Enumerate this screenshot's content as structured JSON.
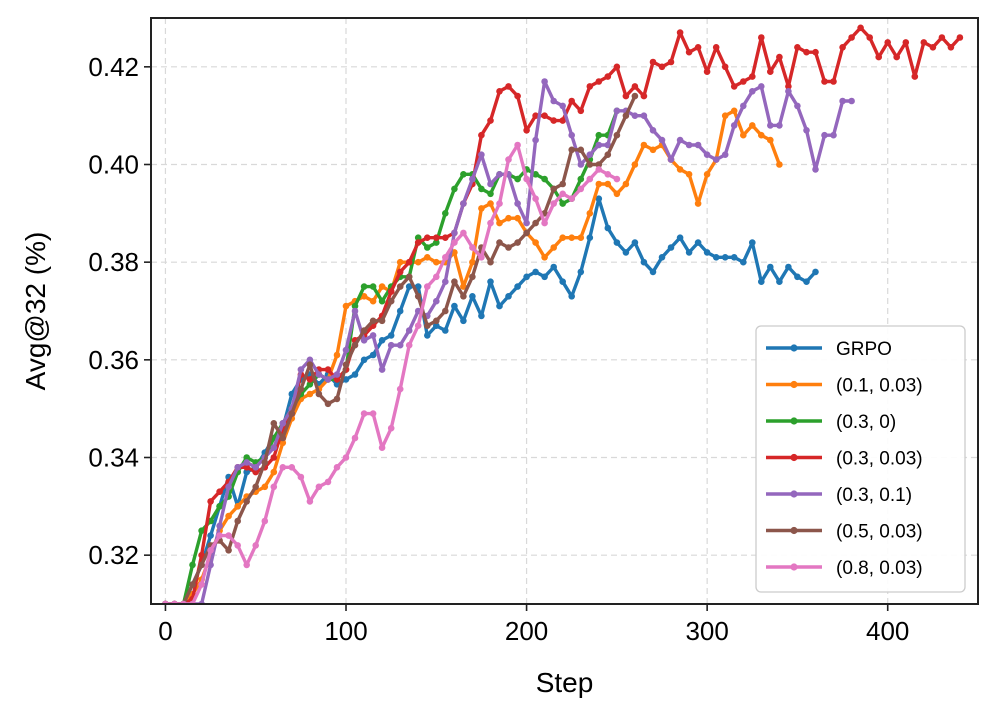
{
  "chart_data": {
    "type": "line",
    "xlabel": "Step",
    "ylabel": "Avg@32 (%)",
    "xlim": [
      -8,
      450
    ],
    "ylim": [
      0.31,
      0.43
    ],
    "xticks": [
      0,
      100,
      200,
      300,
      400
    ],
    "yticks": [
      0.32,
      0.34,
      0.36,
      0.38,
      0.4,
      0.42
    ],
    "grid": true,
    "legend_position": "lower-right",
    "series": [
      {
        "name": "GRPO",
        "color": "#1f77b4",
        "x": [
          0,
          5,
          10,
          15,
          20,
          25,
          30,
          35,
          40,
          45,
          50,
          55,
          60,
          65,
          70,
          75,
          80,
          85,
          90,
          95,
          100,
          105,
          110,
          115,
          120,
          125,
          130,
          135,
          140,
          145,
          150,
          155,
          160,
          165,
          170,
          175,
          180,
          185,
          190,
          195,
          200,
          205,
          210,
          215,
          220,
          225,
          230,
          235,
          240,
          245,
          250,
          255,
          260,
          265,
          270,
          275,
          280,
          285,
          290,
          295,
          300,
          305,
          310,
          315,
          320,
          325,
          330,
          335,
          340,
          345,
          350,
          355,
          360
        ],
        "values": [
          0.31,
          0.31,
          0.31,
          0.314,
          0.318,
          0.324,
          0.33,
          0.336,
          0.33,
          0.337,
          0.338,
          0.341,
          0.344,
          0.346,
          0.353,
          0.356,
          0.357,
          0.355,
          0.357,
          0.355,
          0.356,
          0.357,
          0.36,
          0.361,
          0.364,
          0.365,
          0.37,
          0.375,
          0.375,
          0.365,
          0.367,
          0.366,
          0.371,
          0.368,
          0.373,
          0.369,
          0.376,
          0.371,
          0.373,
          0.375,
          0.377,
          0.378,
          0.377,
          0.379,
          0.376,
          0.373,
          0.378,
          0.385,
          0.393,
          0.387,
          0.384,
          0.382,
          0.384,
          0.38,
          0.378,
          0.381,
          0.383,
          0.385,
          0.382,
          0.384,
          0.382,
          0.381,
          0.381,
          0.381,
          0.38,
          0.384,
          0.376,
          0.379,
          0.376,
          0.379,
          0.377,
          0.376,
          0.378
        ]
      },
      {
        "name": "(0.1, 0.03)",
        "color": "#ff7f0e",
        "x": [
          0,
          5,
          10,
          15,
          20,
          25,
          30,
          35,
          40,
          45,
          50,
          55,
          60,
          65,
          70,
          75,
          80,
          85,
          90,
          95,
          100,
          105,
          110,
          115,
          120,
          125,
          130,
          135,
          140,
          145,
          150,
          155,
          160,
          165,
          170,
          175,
          180,
          185,
          190,
          195,
          200,
          205,
          210,
          215,
          220,
          225,
          230,
          235,
          240,
          245,
          250,
          255,
          260,
          265,
          270,
          275,
          280,
          285,
          290,
          295,
          300,
          305,
          310,
          315,
          320,
          325,
          330,
          335,
          340
        ],
        "values": [
          0.31,
          0.31,
          0.31,
          0.312,
          0.315,
          0.32,
          0.325,
          0.328,
          0.33,
          0.332,
          0.333,
          0.334,
          0.337,
          0.343,
          0.348,
          0.352,
          0.353,
          0.354,
          0.356,
          0.361,
          0.371,
          0.372,
          0.373,
          0.372,
          0.375,
          0.374,
          0.38,
          0.38,
          0.38,
          0.381,
          0.38,
          0.38,
          0.382,
          0.375,
          0.38,
          0.391,
          0.392,
          0.388,
          0.389,
          0.389,
          0.386,
          0.384,
          0.381,
          0.383,
          0.385,
          0.385,
          0.385,
          0.39,
          0.396,
          0.396,
          0.394,
          0.396,
          0.4,
          0.404,
          0.403,
          0.404,
          0.401,
          0.399,
          0.398,
          0.392,
          0.398,
          0.401,
          0.41,
          0.411,
          0.406,
          0.408,
          0.406,
          0.405,
          0.4
        ]
      },
      {
        "name": "(0.3, 0)",
        "color": "#2ca02c",
        "x": [
          0,
          5,
          10,
          15,
          20,
          25,
          30,
          35,
          40,
          45,
          50,
          55,
          60,
          65,
          70,
          75,
          80,
          85,
          90,
          95,
          100,
          105,
          110,
          115,
          120,
          125,
          130,
          135,
          140,
          145,
          150,
          155,
          160,
          165,
          170,
          175,
          180,
          185,
          190,
          195,
          200,
          205,
          210,
          215,
          220,
          225,
          230,
          235,
          240,
          245,
          250
        ],
        "values": [
          0.31,
          0.31,
          0.31,
          0.318,
          0.325,
          0.327,
          0.33,
          0.332,
          0.337,
          0.34,
          0.339,
          0.34,
          0.344,
          0.347,
          0.35,
          0.353,
          0.355,
          0.357,
          0.356,
          0.356,
          0.358,
          0.371,
          0.375,
          0.375,
          0.372,
          0.375,
          0.377,
          0.377,
          0.385,
          0.383,
          0.384,
          0.39,
          0.395,
          0.398,
          0.398,
          0.395,
          0.394,
          0.398,
          0.398,
          0.397,
          0.399,
          0.398,
          0.397,
          0.395,
          0.392,
          0.393,
          0.397,
          0.401,
          0.406,
          0.406,
          0.411
        ]
      },
      {
        "name": "(0.3, 0.03)",
        "color": "#d62728",
        "x": [
          0,
          5,
          10,
          15,
          20,
          25,
          30,
          35,
          40,
          45,
          50,
          55,
          60,
          65,
          70,
          75,
          80,
          85,
          90,
          95,
          100,
          105,
          110,
          115,
          120,
          125,
          130,
          135,
          140,
          145,
          150,
          155,
          160,
          165,
          170,
          175,
          180,
          185,
          190,
          195,
          200,
          205,
          210,
          215,
          220,
          225,
          230,
          235,
          240,
          245,
          250,
          255,
          260,
          265,
          270,
          275,
          280,
          285,
          290,
          295,
          300,
          305,
          310,
          315,
          320,
          325,
          330,
          335,
          340,
          345,
          350,
          355,
          360,
          365,
          370,
          375,
          380,
          385,
          390,
          395,
          400,
          405,
          410,
          415,
          420,
          425,
          430,
          435,
          440
        ],
        "values": [
          0.31,
          0.31,
          0.31,
          0.311,
          0.32,
          0.331,
          0.333,
          0.335,
          0.338,
          0.338,
          0.337,
          0.338,
          0.34,
          0.346,
          0.349,
          0.357,
          0.356,
          0.358,
          0.358,
          0.356,
          0.358,
          0.364,
          0.365,
          0.367,
          0.369,
          0.374,
          0.378,
          0.38,
          0.384,
          0.385,
          0.385,
          0.385,
          0.386,
          0.392,
          0.396,
          0.406,
          0.409,
          0.415,
          0.416,
          0.414,
          0.407,
          0.41,
          0.41,
          0.409,
          0.409,
          0.413,
          0.411,
          0.416,
          0.417,
          0.418,
          0.42,
          0.414,
          0.416,
          0.414,
          0.421,
          0.42,
          0.421,
          0.427,
          0.423,
          0.424,
          0.419,
          0.424,
          0.42,
          0.416,
          0.417,
          0.418,
          0.426,
          0.419,
          0.422,
          0.416,
          0.424,
          0.423,
          0.423,
          0.417,
          0.417,
          0.424,
          0.426,
          0.428,
          0.426,
          0.422,
          0.425,
          0.422,
          0.425,
          0.418,
          0.425,
          0.424,
          0.426,
          0.424,
          0.426
        ]
      },
      {
        "name": "(0.3, 0.1)",
        "color": "#9467bd",
        "x": [
          0,
          5,
          10,
          15,
          20,
          25,
          30,
          35,
          40,
          45,
          50,
          55,
          60,
          65,
          70,
          75,
          80,
          85,
          90,
          95,
          100,
          105,
          110,
          115,
          120,
          125,
          130,
          135,
          140,
          145,
          150,
          155,
          160,
          165,
          170,
          175,
          180,
          185,
          190,
          195,
          200,
          205,
          210,
          215,
          220,
          225,
          230,
          235,
          240,
          245,
          250,
          255,
          260,
          265,
          270,
          275,
          280,
          285,
          290,
          295,
          300,
          305,
          310,
          315,
          320,
          325,
          330,
          335,
          340,
          345,
          350,
          355,
          360,
          365,
          370,
          375,
          380
        ],
        "values": [
          0.31,
          0.31,
          0.31,
          0.31,
          0.31,
          0.318,
          0.326,
          0.334,
          0.338,
          0.339,
          0.338,
          0.34,
          0.342,
          0.347,
          0.35,
          0.358,
          0.36,
          0.357,
          0.356,
          0.357,
          0.362,
          0.37,
          0.364,
          0.365,
          0.358,
          0.363,
          0.363,
          0.366,
          0.37,
          0.369,
          0.372,
          0.376,
          0.386,
          0.392,
          0.397,
          0.402,
          0.396,
          0.398,
          0.398,
          0.392,
          0.388,
          0.405,
          0.417,
          0.413,
          0.412,
          0.406,
          0.4,
          0.402,
          0.404,
          0.404,
          0.411,
          0.411,
          0.41,
          0.41,
          0.407,
          0.405,
          0.401,
          0.405,
          0.404,
          0.404,
          0.402,
          0.401,
          0.402,
          0.408,
          0.412,
          0.415,
          0.416,
          0.408,
          0.408,
          0.415,
          0.412,
          0.407,
          0.399,
          0.406,
          0.406,
          0.413,
          0.413
        ]
      },
      {
        "name": "(0.5, 0.03)",
        "color": "#8c564b",
        "x": [
          0,
          5,
          10,
          15,
          20,
          25,
          30,
          35,
          40,
          45,
          50,
          55,
          60,
          65,
          70,
          75,
          80,
          85,
          90,
          95,
          100,
          105,
          110,
          115,
          120,
          125,
          130,
          135,
          140,
          145,
          150,
          155,
          160,
          165,
          170,
          175,
          180,
          185,
          190,
          195,
          200,
          205,
          210,
          215,
          220,
          225,
          230,
          235,
          240,
          245,
          250,
          255,
          260
        ],
        "values": [
          0.31,
          0.31,
          0.31,
          0.314,
          0.318,
          0.322,
          0.323,
          0.321,
          0.327,
          0.331,
          0.334,
          0.339,
          0.347,
          0.344,
          0.349,
          0.354,
          0.359,
          0.353,
          0.351,
          0.352,
          0.359,
          0.363,
          0.366,
          0.368,
          0.368,
          0.372,
          0.375,
          0.377,
          0.373,
          0.367,
          0.368,
          0.37,
          0.376,
          0.373,
          0.377,
          0.383,
          0.38,
          0.384,
          0.383,
          0.384,
          0.386,
          0.388,
          0.39,
          0.395,
          0.396,
          0.403,
          0.403,
          0.4,
          0.4,
          0.402,
          0.406,
          0.41,
          0.414
        ]
      },
      {
        "name": "(0.8, 0.03)",
        "color": "#e377c2",
        "x": [
          0,
          5,
          10,
          15,
          20,
          25,
          30,
          35,
          40,
          45,
          50,
          55,
          60,
          65,
          70,
          75,
          80,
          85,
          90,
          95,
          100,
          105,
          110,
          115,
          120,
          125,
          130,
          135,
          140,
          145,
          150,
          155,
          160,
          165,
          170,
          175,
          180,
          185,
          190,
          195,
          200,
          205,
          210,
          215,
          220,
          225,
          230,
          235,
          240,
          245,
          250
        ],
        "values": [
          0.31,
          0.31,
          0.31,
          0.31,
          0.314,
          0.321,
          0.324,
          0.324,
          0.322,
          0.318,
          0.322,
          0.327,
          0.334,
          0.338,
          0.338,
          0.336,
          0.331,
          0.334,
          0.335,
          0.338,
          0.34,
          0.344,
          0.349,
          0.349,
          0.342,
          0.346,
          0.354,
          0.363,
          0.367,
          0.375,
          0.377,
          0.381,
          0.384,
          0.386,
          0.383,
          0.381,
          0.388,
          0.392,
          0.401,
          0.404,
          0.397,
          0.393,
          0.388,
          0.392,
          0.394,
          0.393,
          0.395,
          0.397,
          0.399,
          0.398,
          0.397
        ]
      }
    ]
  }
}
